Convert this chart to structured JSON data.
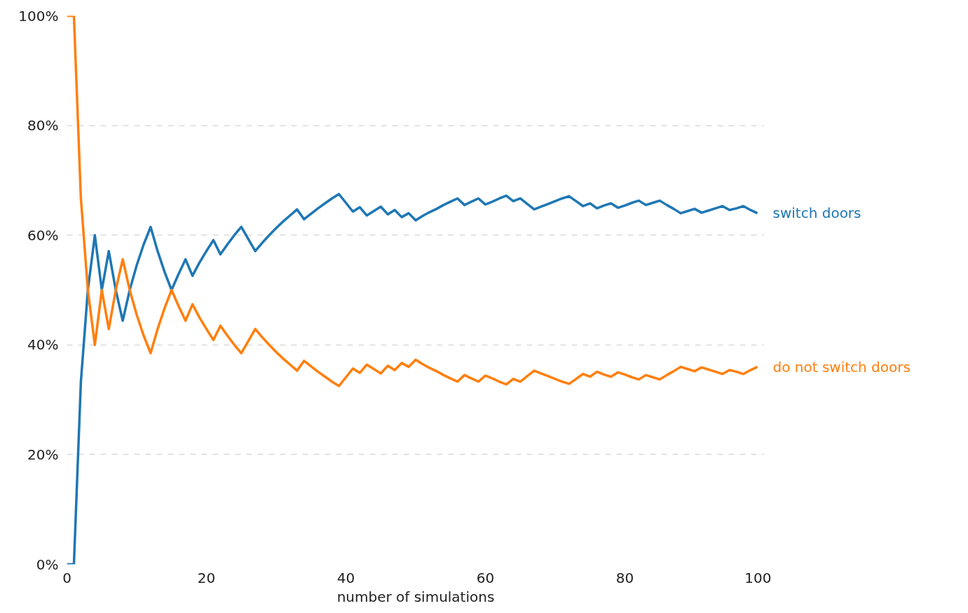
{
  "chart_data": {
    "type": "line",
    "xlabel": "number of simulations",
    "x": [
      0,
      1,
      2,
      3,
      4,
      5,
      6,
      7,
      8,
      9,
      10,
      11,
      12,
      13,
      14,
      15,
      16,
      17,
      18,
      19,
      20,
      21,
      22,
      23,
      24,
      25,
      26,
      27,
      28,
      29,
      30,
      31,
      32,
      33,
      34,
      35,
      36,
      37,
      38,
      39,
      40,
      41,
      42,
      43,
      44,
      45,
      46,
      47,
      48,
      49,
      50,
      51,
      52,
      53,
      54,
      55,
      56,
      57,
      58,
      59,
      60,
      61,
      62,
      63,
      64,
      65,
      66,
      67,
      68,
      69,
      70,
      71,
      72,
      73,
      74,
      75,
      76,
      77,
      78,
      79,
      80,
      81,
      82,
      83,
      84,
      85,
      86,
      87,
      88,
      89,
      90,
      91,
      92,
      93,
      94,
      95,
      96,
      97,
      98,
      99
    ],
    "series": [
      {
        "name": "switch doors",
        "color": "#1f77b4",
        "values": [
          0,
          0,
          33.3,
          50,
          60,
          50,
          57.1,
          50,
          44.4,
          50,
          54.5,
          58.3,
          61.5,
          57.1,
          53.3,
          50,
          52.9,
          55.6,
          52.6,
          55,
          57.1,
          59.1,
          56.5,
          58.3,
          60,
          61.5,
          59.3,
          57.1,
          58.6,
          60,
          61.3,
          62.5,
          63.6,
          64.7,
          62.9,
          63.9,
          64.9,
          65.8,
          66.7,
          67.5,
          65.9,
          64.3,
          65.1,
          63.6,
          64.4,
          65.2,
          63.8,
          64.6,
          63.3,
          64,
          62.7,
          63.5,
          64.2,
          64.8,
          65.5,
          66.1,
          66.7,
          65.5,
          66.1,
          66.7,
          65.6,
          66.1,
          66.7,
          67.2,
          66.2,
          66.7,
          65.7,
          64.7,
          65.2,
          65.7,
          66.2,
          66.7,
          67.1,
          66.2,
          65.3,
          65.8,
          64.9,
          65.4,
          65.8,
          65,
          65.4,
          65.9,
          66.3,
          65.5,
          65.9,
          66.3,
          65.5,
          64.8,
          64,
          64.4,
          64.8,
          64.1,
          64.5,
          64.9,
          65.3,
          64.6,
          64.9,
          65.3,
          64.6,
          64
        ]
      },
      {
        "name": "do not switch doors",
        "color": "#ff7f0e",
        "values": [
          100,
          100,
          66.7,
          50,
          40,
          50,
          42.9,
          50,
          55.6,
          50,
          45.5,
          41.7,
          38.5,
          42.9,
          46.7,
          50,
          47.1,
          44.4,
          47.4,
          45,
          42.9,
          40.9,
          43.5,
          41.7,
          40,
          38.5,
          40.7,
          42.9,
          41.4,
          40,
          38.7,
          37.5,
          36.4,
          35.3,
          37.1,
          36.1,
          35.1,
          34.2,
          33.3,
          32.5,
          34.1,
          35.7,
          34.9,
          36.4,
          35.6,
          34.8,
          36.2,
          35.4,
          36.7,
          36,
          37.3,
          36.5,
          35.8,
          35.2,
          34.5,
          33.9,
          33.3,
          34.5,
          33.9,
          33.3,
          34.4,
          33.9,
          33.3,
          32.8,
          33.8,
          33.3,
          34.3,
          35.3,
          34.8,
          34.3,
          33.8,
          33.3,
          32.9,
          33.8,
          34.7,
          34.2,
          35.1,
          34.6,
          34.2,
          35,
          34.6,
          34.1,
          33.7,
          34.5,
          34.1,
          33.7,
          34.5,
          35.2,
          36,
          35.6,
          35.2,
          35.9,
          35.5,
          35.1,
          34.7,
          35.4,
          35.1,
          34.7,
          35.4,
          36
        ]
      }
    ],
    "xlim": [
      0,
      100
    ],
    "xticks": [
      0,
      20,
      40,
      60,
      80,
      100
    ],
    "ylim": [
      0,
      100
    ],
    "yticks": [
      {
        "value": 0,
        "label": "0%"
      },
      {
        "value": 20,
        "label": "20%"
      },
      {
        "value": 40,
        "label": "40%"
      },
      {
        "value": 60,
        "label": "60%"
      },
      {
        "value": 80,
        "label": "80%"
      },
      {
        "value": 100,
        "label": "100%"
      }
    ],
    "grid": "y",
    "line_style": "solid",
    "marker": "none"
  }
}
